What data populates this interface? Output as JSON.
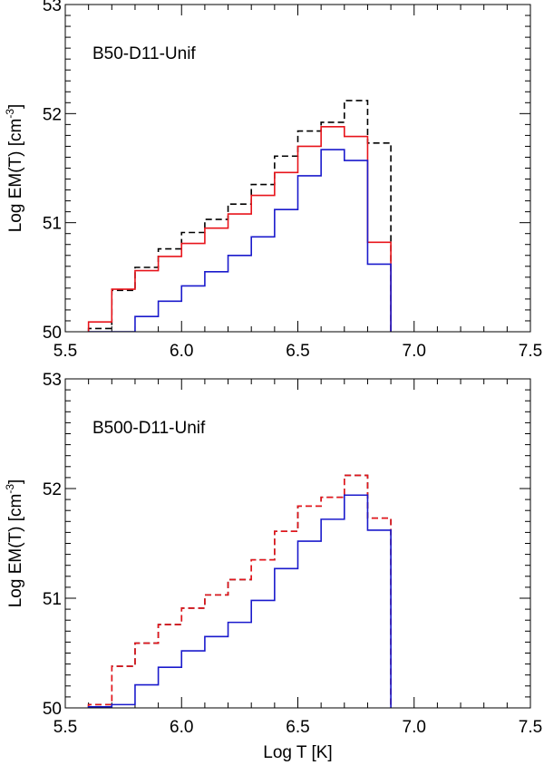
{
  "figure": {
    "xlabel": "Log T [K]"
  },
  "chart_data": [
    {
      "type": "line",
      "step": true,
      "label": "B50-D11-Unif",
      "xlabel": "",
      "ylabel": "Log EM(T) [cm",
      "ylabel_sup": "-3",
      "ylabel_close": "]",
      "xlim": [
        5.5,
        7.5
      ],
      "ylim": [
        50,
        53
      ],
      "xticks": [
        "5.5",
        "6.0",
        "6.5",
        "7.0",
        "7.5"
      ],
      "yticks": [
        "50",
        "51",
        "52",
        "53"
      ],
      "bin_edges": [
        5.6,
        5.7,
        5.8,
        5.9,
        6.0,
        6.1,
        6.2,
        6.3,
        6.4,
        6.5,
        6.6,
        6.7,
        6.8,
        6.9
      ],
      "series": [
        {
          "name": "dashed-black",
          "color": "#000000",
          "dash": true,
          "values": [
            50.03,
            50.38,
            50.59,
            50.76,
            50.91,
            51.03,
            51.17,
            51.35,
            51.61,
            51.84,
            51.92,
            52.12,
            51.73
          ]
        },
        {
          "name": "red",
          "color": "#e8141b",
          "dash": false,
          "values": [
            50.09,
            50.39,
            50.56,
            50.69,
            50.81,
            50.95,
            51.08,
            51.25,
            51.46,
            51.7,
            51.88,
            51.79,
            50.82
          ]
        },
        {
          "name": "blue",
          "color": "#1a1acc",
          "dash": false,
          "values": [
            49.96,
            49.97,
            50.14,
            50.28,
            50.42,
            50.55,
            50.7,
            50.87,
            51.12,
            51.43,
            51.67,
            51.57,
            50.62
          ]
        }
      ]
    },
    {
      "type": "line",
      "step": true,
      "label": "B500-D11-Unif",
      "xlabel": "Log T [K]",
      "ylabel": "Log EM(T) [cm",
      "ylabel_sup": "-3",
      "ylabel_close": "]",
      "xlim": [
        5.5,
        7.5
      ],
      "ylim": [
        50,
        53
      ],
      "xticks": [
        "5.5",
        "6.0",
        "6.5",
        "7.0",
        "7.5"
      ],
      "yticks": [
        "50",
        "51",
        "52",
        "53"
      ],
      "bin_edges": [
        5.6,
        5.7,
        5.8,
        5.9,
        6.0,
        6.1,
        6.2,
        6.3,
        6.4,
        6.5,
        6.6,
        6.7,
        6.8,
        6.9
      ],
      "series": [
        {
          "name": "dashed-black",
          "color": "#000000",
          "dash": true,
          "values": [
            50.03,
            50.38,
            50.59,
            50.76,
            50.91,
            51.03,
            51.17,
            51.35,
            51.61,
            51.84,
            51.92,
            52.12,
            51.73
          ]
        },
        {
          "name": "red",
          "color": "#e8141b",
          "dash": true,
          "values": [
            50.03,
            50.38,
            50.59,
            50.76,
            50.91,
            51.03,
            51.17,
            51.35,
            51.61,
            51.84,
            51.92,
            52.12,
            51.73
          ]
        },
        {
          "name": "blue",
          "color": "#1a1acc",
          "dash": false,
          "values": [
            50.01,
            50.03,
            50.21,
            50.37,
            50.52,
            50.65,
            50.78,
            50.98,
            51.27,
            51.52,
            51.72,
            51.94,
            51.62
          ]
        }
      ]
    }
  ]
}
